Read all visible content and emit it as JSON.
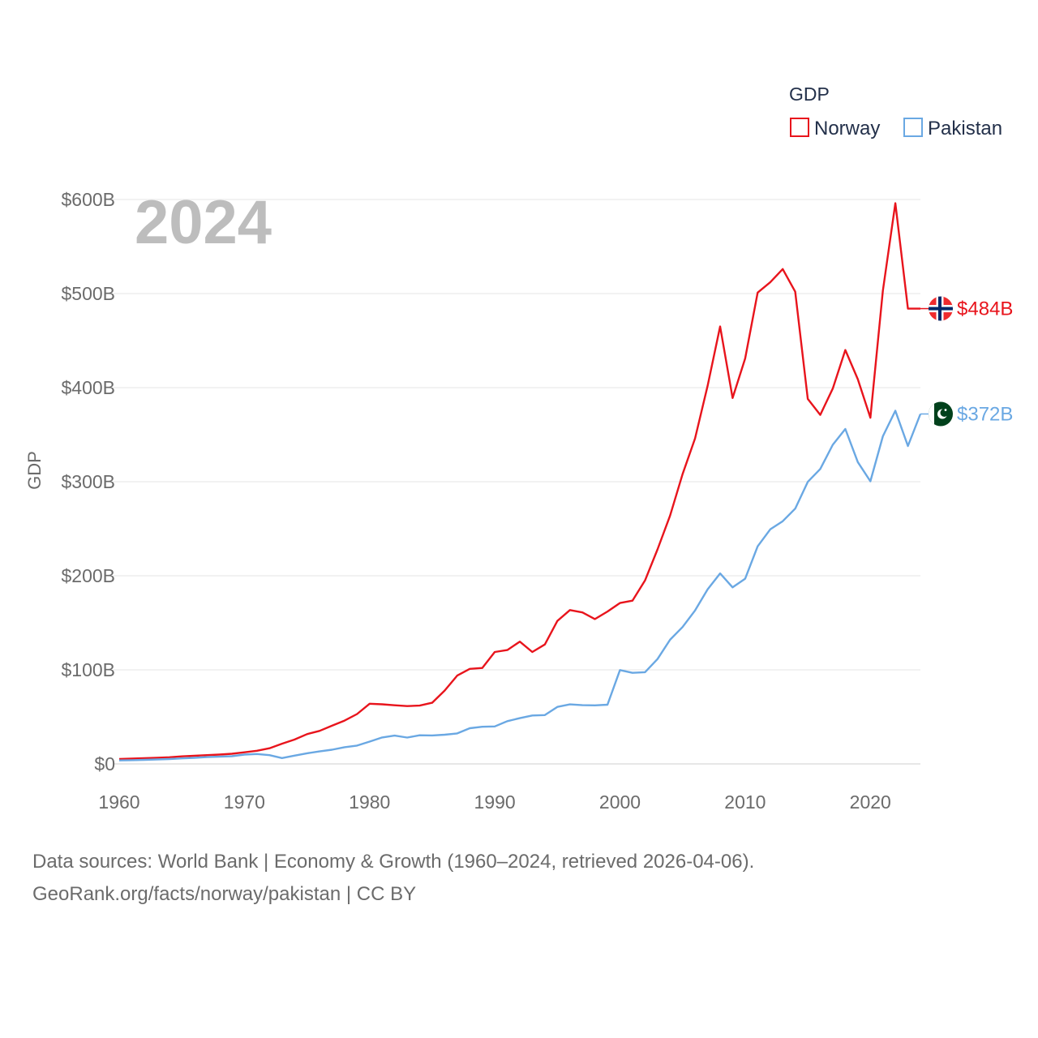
{
  "chart_data": {
    "type": "line",
    "current_year": "2024",
    "legend_title": "GDP",
    "ylabel": "GDP",
    "ylim": [
      0,
      600
    ],
    "xlim": [
      1960,
      2024
    ],
    "y_ticks": [
      {
        "value": 0,
        "label": "$0"
      },
      {
        "value": 100,
        "label": "$100B"
      },
      {
        "value": 200,
        "label": "$200B"
      },
      {
        "value": 300,
        "label": "$300B"
      },
      {
        "value": 400,
        "label": "$400B"
      },
      {
        "value": 500,
        "label": "$500B"
      },
      {
        "value": 600,
        "label": "$600B"
      }
    ],
    "x_ticks": [
      {
        "value": 1960,
        "label": "1960"
      },
      {
        "value": 1970,
        "label": "1970"
      },
      {
        "value": 1980,
        "label": "1980"
      },
      {
        "value": 1990,
        "label": "1990"
      },
      {
        "value": 2000,
        "label": "2000"
      },
      {
        "value": 2010,
        "label": "2010"
      },
      {
        "value": 2020,
        "label": "2020"
      }
    ],
    "x": [
      1960,
      1961,
      1962,
      1963,
      1964,
      1965,
      1966,
      1967,
      1968,
      1969,
      1970,
      1971,
      1972,
      1973,
      1974,
      1975,
      1976,
      1977,
      1978,
      1979,
      1980,
      1981,
      1982,
      1983,
      1984,
      1985,
      1986,
      1987,
      1988,
      1989,
      1990,
      1991,
      1992,
      1993,
      1994,
      1995,
      1996,
      1997,
      1998,
      1999,
      2000,
      2001,
      2002,
      2003,
      2004,
      2005,
      2006,
      2007,
      2008,
      2009,
      2010,
      2011,
      2012,
      2013,
      2014,
      2015,
      2016,
      2017,
      2018,
      2019,
      2020,
      2021,
      2022,
      2023,
      2024
    ],
    "series": [
      {
        "name": "Norway",
        "color": "#e8141c",
        "end_label": "$484B",
        "flag": "norway-flag",
        "values": [
          5.2,
          5.7,
          6.1,
          6.5,
          7.1,
          8.0,
          8.6,
          9.3,
          9.9,
          10.8,
          12.3,
          14.0,
          16.6,
          21.5,
          25.9,
          31.6,
          35.1,
          40.6,
          46.0,
          53.0,
          64.0,
          63.4,
          62.3,
          61.5,
          62.0,
          65.0,
          78.0,
          93.9,
          101.0,
          102.0,
          119.0,
          121.0,
          130.0,
          119.0,
          127.0,
          152.0,
          163.5,
          161.0,
          154.0,
          162.0,
          171.0,
          173.5,
          195.0,
          228.0,
          264.0,
          308.0,
          346.0,
          402.0,
          465.0,
          389.0,
          431.0,
          501.0,
          512.0,
          526.0,
          502.0,
          388.0,
          371.0,
          399.0,
          440.0,
          409.0,
          368.0,
          503.0,
          596.0,
          484.0,
          484.0
        ]
      },
      {
        "name": "Pakistan",
        "color": "#6aa8e3",
        "end_label": "$372B",
        "flag": "pakistan-flag",
        "values": [
          3.7,
          4.0,
          4.3,
          4.7,
          5.2,
          5.9,
          6.5,
          7.2,
          7.7,
          8.2,
          9.9,
          10.5,
          9.3,
          6.2,
          8.8,
          11.3,
          13.3,
          15.1,
          17.8,
          19.5,
          23.7,
          28.1,
          30.1,
          28.0,
          30.4,
          30.3,
          31.0,
          32.4,
          37.9,
          39.5,
          39.8,
          45.4,
          48.6,
          51.5,
          51.9,
          60.6,
          63.3,
          62.4,
          62.2,
          62.9,
          99.7,
          96.8,
          97.5,
          111.5,
          132.0,
          145.5,
          163.1,
          185.5,
          202.5,
          187.7,
          196.9,
          231.3,
          249.3,
          258.0,
          271.4,
          299.8,
          313.5,
          339.2,
          356.0,
          320.9,
          300.4,
          348.3,
          375.4,
          337.9,
          372.0
        ]
      }
    ]
  },
  "source": {
    "line1": "Data sources: World Bank | Economy & Growth (1960–2024, retrieved 2026-04-06).",
    "line2": "GeoRank.org/facts/norway/pakistan | CC BY"
  }
}
